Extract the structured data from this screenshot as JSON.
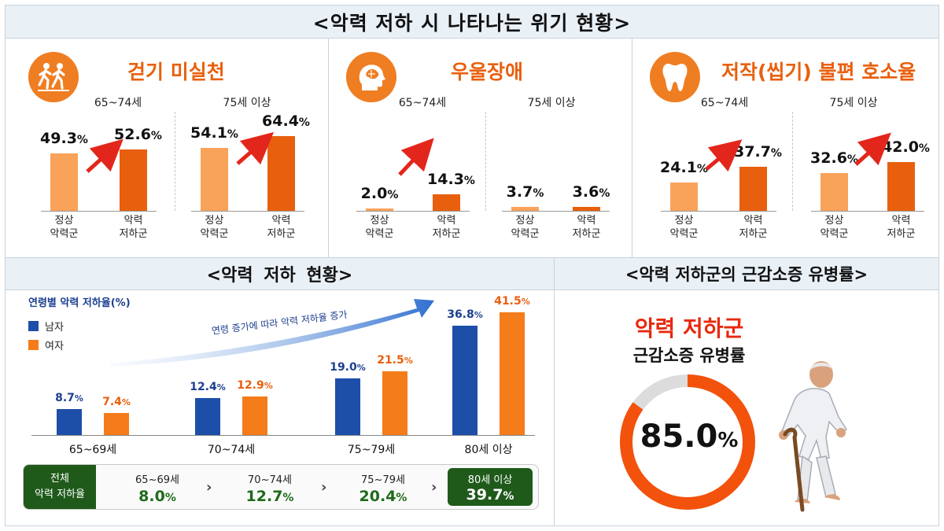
{
  "main_title": "<악력 저하 시 나타나는 위기 현황>",
  "panels": [
    {
      "title": "걷기 미실천",
      "icon": "walking-people-icon",
      "groups": [
        {
          "age": "65~74세",
          "normal": "49.3",
          "low": "52.6"
        },
        {
          "age": "75세 이상",
          "normal": "54.1",
          "low": "64.4"
        }
      ]
    },
    {
      "title": "우울장애",
      "icon": "head-brain-icon",
      "groups": [
        {
          "age": "65~74세",
          "normal": "2.0",
          "low": "14.3"
        },
        {
          "age": "75세 이상",
          "normal": "3.7",
          "low": "3.6"
        }
      ]
    },
    {
      "title": "저작(씹기) 불편 호소율",
      "icon": "tooth-icon",
      "groups": [
        {
          "age": "65~74세",
          "normal": "24.1",
          "low": "37.7"
        },
        {
          "age": "75세 이상",
          "normal": "32.6",
          "low": "42.0"
        }
      ]
    }
  ],
  "categories": {
    "normal": "정상\n악력군",
    "low": "악력\n저하군"
  },
  "percent_sign": "%",
  "status": {
    "title": "<악력 저하 현황>",
    "chart_title": "연령별 악력 저하율(%)",
    "legend": {
      "male": "남자",
      "female": "여자"
    },
    "trend_text": "연령 증가에 따라 악력 저하율 증가",
    "summary_label": "전체\n악력 저하율",
    "summary": [
      {
        "age": "65~69세",
        "value": "8.0"
      },
      {
        "age": "70~74세",
        "value": "12.7"
      },
      {
        "age": "75~79세",
        "value": "20.4"
      },
      {
        "age": "80세 이상",
        "value": "39.7"
      }
    ],
    "colors": {
      "male": "#1d4fa8",
      "female": "#f57c1a"
    }
  },
  "prevalence": {
    "title": "<악력 저하군의 근감소증 유병률>",
    "line1": "악력 저하군",
    "line2": "근감소증 유병률",
    "value": "85.0",
    "illustration": "elderly-man-with-cane-icon"
  },
  "chart_data": [
    {
      "type": "bar",
      "title": "걷기 미실천",
      "categories": [
        "정상 악력군",
        "악력 저하군"
      ],
      "series": [
        {
          "name": "65~74세",
          "values": [
            49.3,
            52.6
          ]
        },
        {
          "name": "75세 이상",
          "values": [
            54.1,
            64.4
          ]
        }
      ]
    },
    {
      "type": "bar",
      "title": "우울장애",
      "categories": [
        "정상 악력군",
        "악력 저하군"
      ],
      "series": [
        {
          "name": "65~74세",
          "values": [
            2.0,
            14.3
          ]
        },
        {
          "name": "75세 이상",
          "values": [
            3.7,
            3.6
          ]
        }
      ]
    },
    {
      "type": "bar",
      "title": "저작(씹기) 불편 호소율",
      "categories": [
        "정상 악력군",
        "악력 저하군"
      ],
      "series": [
        {
          "name": "65~74세",
          "values": [
            24.1,
            37.7
          ]
        },
        {
          "name": "75세 이상",
          "values": [
            32.6,
            42.0
          ]
        }
      ]
    },
    {
      "type": "bar",
      "title": "연령별 악력 저하율(%)",
      "categories": [
        "65~69세",
        "70~74세",
        "75~79세",
        "80세 이상"
      ],
      "series": [
        {
          "name": "남자",
          "values": [
            8.7,
            12.4,
            19.0,
            36.8
          ]
        },
        {
          "name": "여자",
          "values": [
            7.4,
            12.9,
            21.5,
            41.5
          ]
        }
      ],
      "legend": "top-left",
      "grid": false
    },
    {
      "type": "pie",
      "title": "악력 저하군 근감소증 유병률",
      "values": [
        85.0,
        15.0
      ]
    }
  ]
}
